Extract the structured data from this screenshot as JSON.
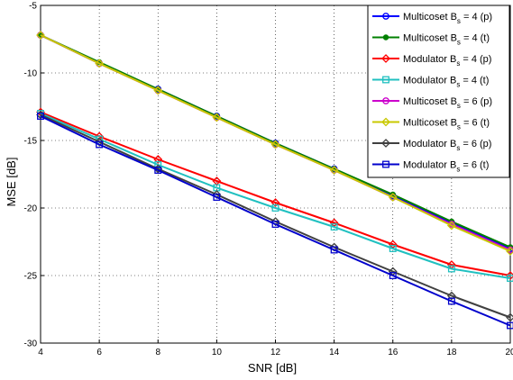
{
  "chart_data": {
    "type": "line",
    "title": "",
    "xlabel": "SNR [dB]",
    "ylabel": "MSE [dB]",
    "xlim": [
      4,
      20
    ],
    "ylim": [
      -30,
      -5
    ],
    "xticks": [
      "4",
      "6",
      "8",
      "10",
      "12",
      "14",
      "16",
      "18",
      "20"
    ],
    "yticks": [
      "-5",
      "-10",
      "-15",
      "-20",
      "-25",
      "-30"
    ],
    "grid": true,
    "legend_position": "top-right",
    "x": [
      4,
      6,
      8,
      10,
      12,
      14,
      16,
      18,
      20
    ],
    "series": [
      {
        "name_main": "Multicoset B",
        "name_sub": "s",
        "name_tail": " = 4 (p)",
        "color": "#0000ff",
        "marker": "circle",
        "values": [
          -7.2,
          -9.3,
          -11.2,
          -13.2,
          -15.2,
          -17.1,
          -19.1,
          -21.1,
          -23.0
        ]
      },
      {
        "name_main": "Multicoset B",
        "name_sub": "s",
        "name_tail": " = 4 (t)",
        "color": "#008000",
        "marker": "dot",
        "values": [
          -7.2,
          -9.2,
          -11.2,
          -13.2,
          -15.2,
          -17.1,
          -19.0,
          -21.0,
          -22.9
        ]
      },
      {
        "name_main": "Modulator B",
        "name_sub": "s",
        "name_tail": " = 4 (p)",
        "color": "#ff0000",
        "marker": "diamond",
        "values": [
          -12.9,
          -14.7,
          -16.4,
          -18.0,
          -19.6,
          -21.1,
          -22.7,
          -24.2,
          -25.0
        ]
      },
      {
        "name_main": "Modulator B",
        "name_sub": "s",
        "name_tail": " = 4 (t)",
        "color": "#20c0c0",
        "marker": "square",
        "values": [
          -13.0,
          -14.9,
          -16.8,
          -18.5,
          -20.0,
          -21.4,
          -23.0,
          -24.5,
          -25.2
        ]
      },
      {
        "name_main": "Multicoset B",
        "name_sub": "s",
        "name_tail": " = 6 (p)",
        "color": "#cc00cc",
        "marker": "circle",
        "values": [
          -7.2,
          -9.3,
          -11.3,
          -13.3,
          -15.3,
          -17.2,
          -19.2,
          -21.2,
          -23.1
        ]
      },
      {
        "name_main": "Multicoset B",
        "name_sub": "s",
        "name_tail": " = 6 (t)",
        "color": "#c8c800",
        "marker": "diamond",
        "values": [
          -7.2,
          -9.3,
          -11.3,
          -13.3,
          -15.3,
          -17.2,
          -19.2,
          -21.3,
          -23.2
        ]
      },
      {
        "name_main": "Modulator B",
        "name_sub": "s",
        "name_tail": " = 6 (p)",
        "color": "#404040",
        "marker": "diamond",
        "values": [
          -13.1,
          -15.1,
          -17.1,
          -19.0,
          -21.0,
          -22.9,
          -24.7,
          -26.5,
          -28.1
        ]
      },
      {
        "name_main": "Modulator B",
        "name_sub": "s",
        "name_tail": " = 6 (t)",
        "color": "#0000cc",
        "marker": "square",
        "values": [
          -13.2,
          -15.3,
          -17.2,
          -19.2,
          -21.2,
          -23.1,
          -25.0,
          -26.9,
          -28.7
        ]
      }
    ]
  }
}
